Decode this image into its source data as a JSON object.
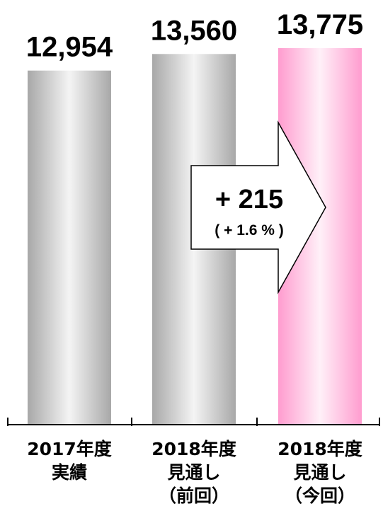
{
  "chart_data": {
    "type": "bar",
    "categories": [
      [
        "2017年度",
        "実績"
      ],
      [
        "2018年度",
        "見通し",
        "（前回）"
      ],
      [
        "2018年度",
        "見通し",
        "（今回）"
      ]
    ],
    "values": [
      12954,
      13560,
      13775
    ],
    "value_labels": [
      "12,954",
      "13,560",
      "13,775"
    ],
    "bar_styles": [
      "silver",
      "silver",
      "pink"
    ],
    "ylim": [
      0,
      14500
    ],
    "grid": false,
    "annotation": {
      "main": "+ 215",
      "sub": "( + 1.6 % )"
    }
  },
  "colors": {
    "silver_edge": "#a8a8a8",
    "silver_mid": "#f4f4f4",
    "pink_edge": "#ff9ccf",
    "pink_mid": "#fff0f8",
    "axis": "#000000"
  }
}
